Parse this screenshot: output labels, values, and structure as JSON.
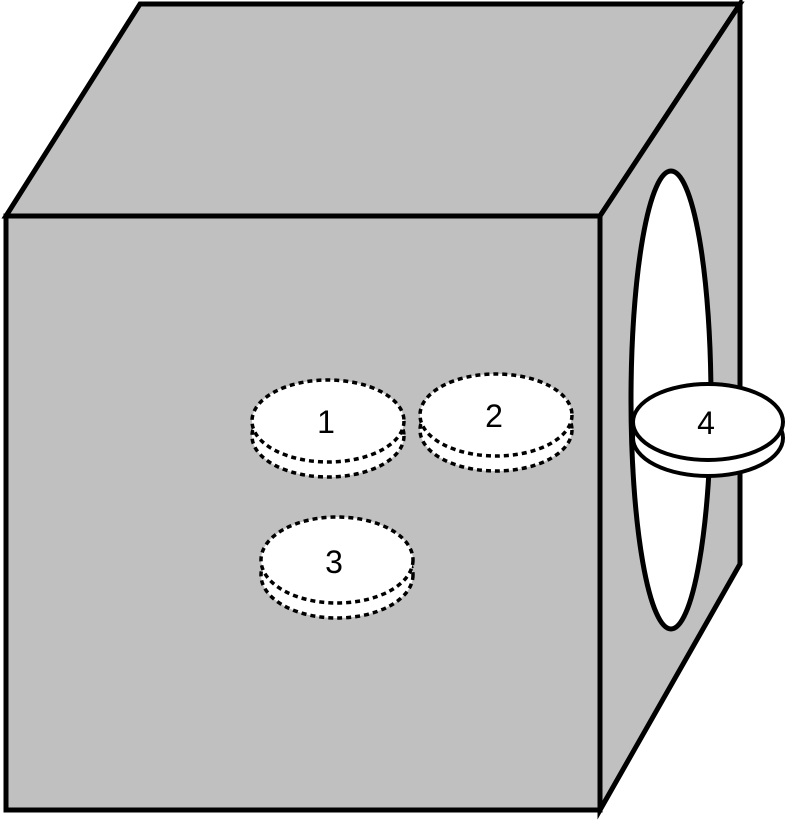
{
  "diagram": {
    "colors": {
      "box_fill": "#c0c0c0",
      "edge": "#000000",
      "coin_fill": "#ffffff",
      "slot_fill": "#ffffff"
    },
    "coins": [
      {
        "label": "1",
        "style": "dashed"
      },
      {
        "label": "2",
        "style": "dashed"
      },
      {
        "label": "3",
        "style": "dashed"
      },
      {
        "label": "4",
        "style": "solid"
      }
    ]
  }
}
